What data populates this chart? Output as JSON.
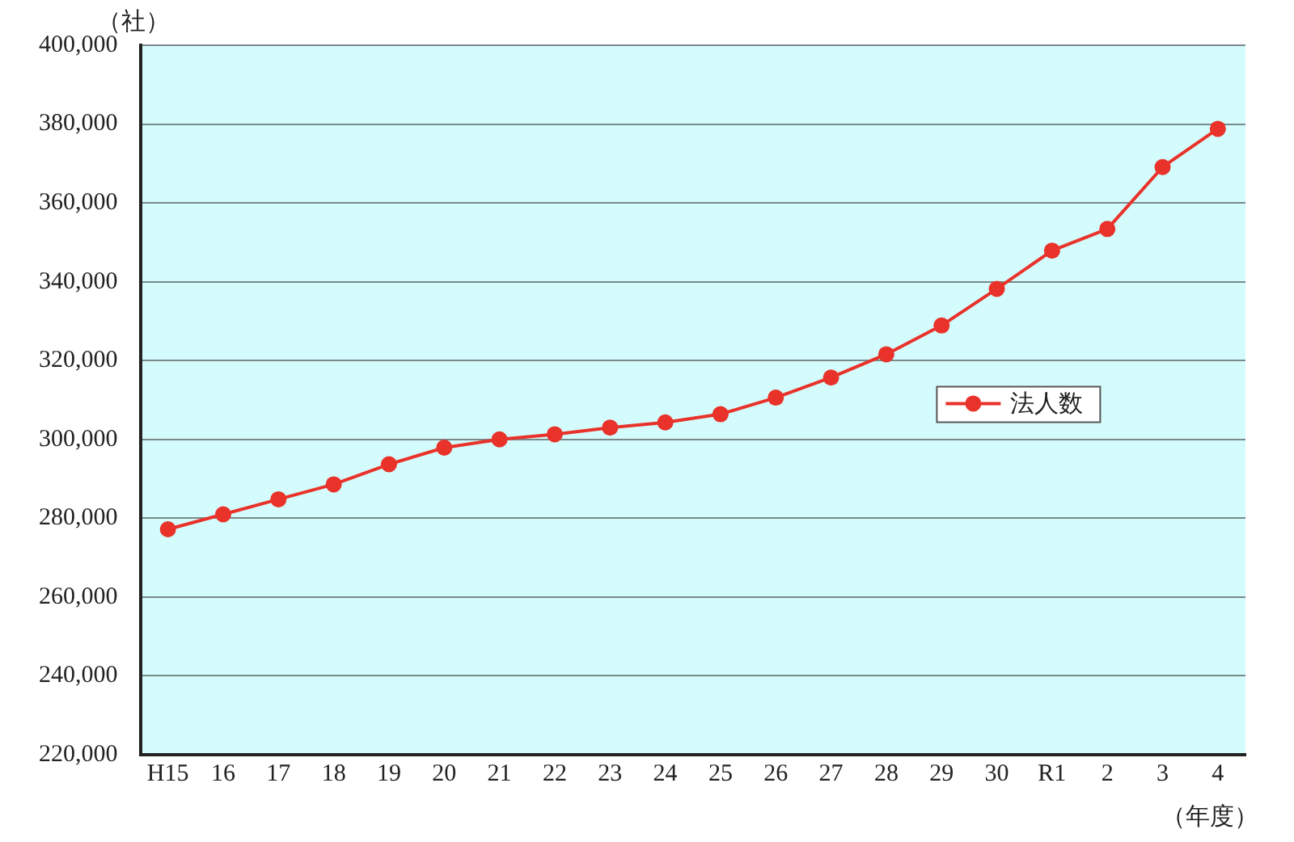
{
  "chart_data": {
    "type": "line",
    "ylabel": "（社）",
    "xlabel": "（年度）",
    "categories": [
      "H15",
      "16",
      "17",
      "18",
      "19",
      "20",
      "21",
      "22",
      "23",
      "24",
      "25",
      "26",
      "27",
      "28",
      "29",
      "30",
      "R1",
      "2",
      "3",
      "4"
    ],
    "series": [
      {
        "name": "法人数",
        "color": "#e8322a",
        "values": [
          277200,
          281000,
          284800,
          288600,
          293700,
          297900,
          300000,
          301300,
          303000,
          304300,
          306400,
          310600,
          315700,
          321600,
          328900,
          338200,
          347900,
          353400,
          369100,
          378800
        ]
      }
    ],
    "ylim": [
      220000,
      400000
    ],
    "yticks": [
      {
        "value": 220000,
        "label": "220,000"
      },
      {
        "value": 240000,
        "label": "240,000"
      },
      {
        "value": 260000,
        "label": "260,000"
      },
      {
        "value": 280000,
        "label": "280,000"
      },
      {
        "value": 300000,
        "label": "300,000"
      },
      {
        "value": 320000,
        "label": "320,000"
      },
      {
        "value": 340000,
        "label": "340,000"
      },
      {
        "value": 360000,
        "label": "360,000"
      },
      {
        "value": 380000,
        "label": "380,000"
      },
      {
        "value": 400000,
        "label": "400,000"
      }
    ],
    "grid": "y",
    "legend": "right",
    "marker": "circle",
    "line_style": "solid"
  }
}
